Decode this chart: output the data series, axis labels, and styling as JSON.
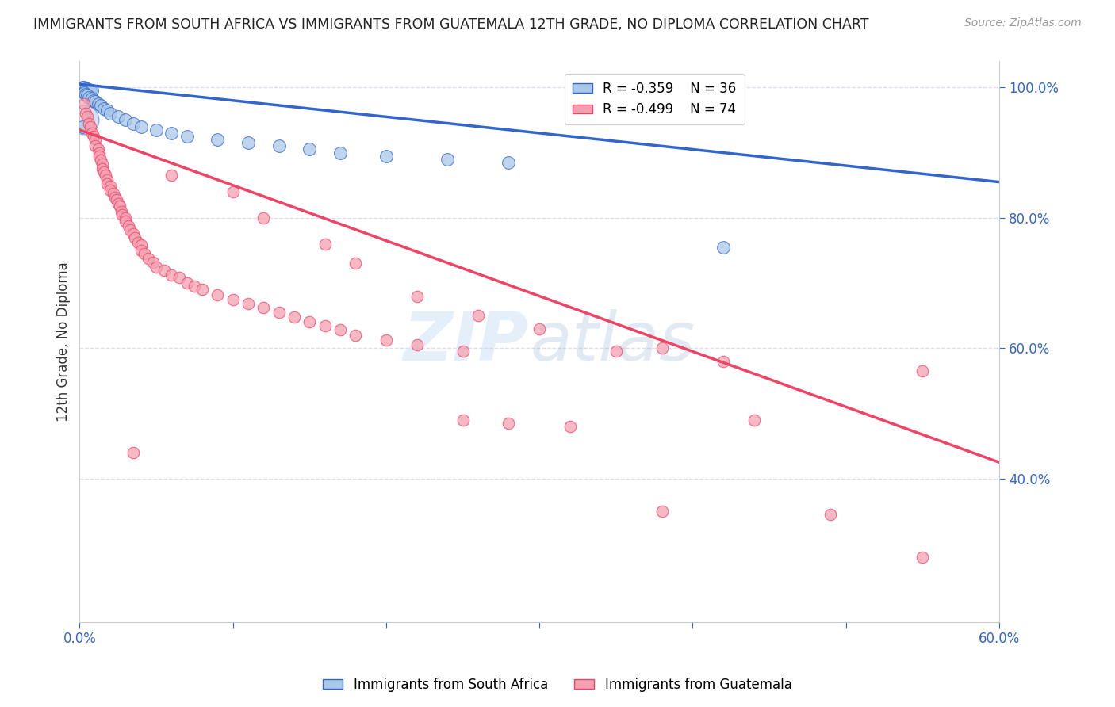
{
  "title": "IMMIGRANTS FROM SOUTH AFRICA VS IMMIGRANTS FROM GUATEMALA 12TH GRADE, NO DIPLOMA CORRELATION CHART",
  "source": "Source: ZipAtlas.com",
  "ylabel": "12th Grade, No Diploma",
  "xmin": 0.0,
  "xmax": 0.6,
  "ymin": 0.18,
  "ymax": 1.04,
  "blue_R": -0.359,
  "blue_N": 36,
  "pink_R": -0.499,
  "pink_N": 74,
  "blue_label": "Immigrants from South Africa",
  "pink_label": "Immigrants from Guatemala",
  "blue_color": "#A8C8E8",
  "pink_color": "#F4A0B0",
  "blue_line_color": "#3366CC",
  "pink_line_color": "#EE4466",
  "blue_line_y0": 1.005,
  "blue_line_y1": 0.855,
  "pink_line_y0": 0.935,
  "pink_line_y1": 0.425,
  "blue_scatter": [
    [
      0.002,
      1.0
    ],
    [
      0.003,
      1.0
    ],
    [
      0.004,
      0.998
    ],
    [
      0.005,
      0.998
    ],
    [
      0.006,
      0.997
    ],
    [
      0.007,
      0.996
    ],
    [
      0.008,
      0.995
    ],
    [
      0.003,
      0.992
    ],
    [
      0.004,
      0.99
    ],
    [
      0.005,
      0.988
    ],
    [
      0.006,
      0.985
    ],
    [
      0.008,
      0.983
    ],
    [
      0.009,
      0.98
    ],
    [
      0.01,
      0.978
    ],
    [
      0.012,
      0.975
    ],
    [
      0.014,
      0.972
    ],
    [
      0.016,
      0.968
    ],
    [
      0.018,
      0.965
    ],
    [
      0.02,
      0.96
    ],
    [
      0.025,
      0.955
    ],
    [
      0.03,
      0.95
    ],
    [
      0.035,
      0.945
    ],
    [
      0.04,
      0.94
    ],
    [
      0.05,
      0.935
    ],
    [
      0.06,
      0.93
    ],
    [
      0.07,
      0.925
    ],
    [
      0.09,
      0.92
    ],
    [
      0.11,
      0.915
    ],
    [
      0.13,
      0.91
    ],
    [
      0.15,
      0.905
    ],
    [
      0.17,
      0.9
    ],
    [
      0.2,
      0.895
    ],
    [
      0.24,
      0.89
    ],
    [
      0.28,
      0.885
    ],
    [
      0.42,
      0.755
    ],
    [
      0.002,
      0.94
    ]
  ],
  "pink_scatter": [
    [
      0.003,
      0.975
    ],
    [
      0.004,
      0.96
    ],
    [
      0.005,
      0.955
    ],
    [
      0.006,
      0.945
    ],
    [
      0.007,
      0.94
    ],
    [
      0.008,
      0.93
    ],
    [
      0.009,
      0.925
    ],
    [
      0.01,
      0.92
    ],
    [
      0.01,
      0.91
    ],
    [
      0.012,
      0.905
    ],
    [
      0.013,
      0.9
    ],
    [
      0.013,
      0.895
    ],
    [
      0.014,
      0.888
    ],
    [
      0.015,
      0.882
    ],
    [
      0.015,
      0.875
    ],
    [
      0.016,
      0.87
    ],
    [
      0.017,
      0.865
    ],
    [
      0.018,
      0.858
    ],
    [
      0.018,
      0.852
    ],
    [
      0.02,
      0.848
    ],
    [
      0.02,
      0.842
    ],
    [
      0.022,
      0.838
    ],
    [
      0.023,
      0.832
    ],
    [
      0.024,
      0.828
    ],
    [
      0.025,
      0.822
    ],
    [
      0.026,
      0.818
    ],
    [
      0.027,
      0.81
    ],
    [
      0.028,
      0.805
    ],
    [
      0.03,
      0.8
    ],
    [
      0.03,
      0.795
    ],
    [
      0.032,
      0.788
    ],
    [
      0.033,
      0.782
    ],
    [
      0.035,
      0.775
    ],
    [
      0.036,
      0.77
    ],
    [
      0.038,
      0.762
    ],
    [
      0.04,
      0.758
    ],
    [
      0.04,
      0.75
    ],
    [
      0.042,
      0.745
    ],
    [
      0.045,
      0.738
    ],
    [
      0.048,
      0.732
    ],
    [
      0.05,
      0.725
    ],
    [
      0.055,
      0.72
    ],
    [
      0.06,
      0.712
    ],
    [
      0.065,
      0.708
    ],
    [
      0.07,
      0.7
    ],
    [
      0.075,
      0.695
    ],
    [
      0.08,
      0.69
    ],
    [
      0.09,
      0.682
    ],
    [
      0.1,
      0.675
    ],
    [
      0.11,
      0.668
    ],
    [
      0.12,
      0.662
    ],
    [
      0.13,
      0.655
    ],
    [
      0.14,
      0.648
    ],
    [
      0.15,
      0.64
    ],
    [
      0.16,
      0.635
    ],
    [
      0.17,
      0.628
    ],
    [
      0.18,
      0.62
    ],
    [
      0.2,
      0.612
    ],
    [
      0.22,
      0.605
    ],
    [
      0.25,
      0.595
    ],
    [
      0.06,
      0.865
    ],
    [
      0.1,
      0.84
    ],
    [
      0.12,
      0.8
    ],
    [
      0.16,
      0.76
    ],
    [
      0.18,
      0.73
    ],
    [
      0.22,
      0.68
    ],
    [
      0.26,
      0.65
    ],
    [
      0.3,
      0.63
    ],
    [
      0.35,
      0.595
    ],
    [
      0.38,
      0.6
    ],
    [
      0.42,
      0.58
    ],
    [
      0.55,
      0.565
    ],
    [
      0.28,
      0.485
    ],
    [
      0.32,
      0.48
    ]
  ],
  "pink_outliers": [
    [
      0.035,
      0.44
    ],
    [
      0.25,
      0.49
    ],
    [
      0.38,
      0.35
    ],
    [
      0.44,
      0.49
    ],
    [
      0.49,
      0.345
    ],
    [
      0.55,
      0.28
    ]
  ],
  "xticks": [
    0.0,
    0.1,
    0.2,
    0.3,
    0.4,
    0.5,
    0.6
  ],
  "yticks_right": [
    0.4,
    0.6,
    0.8,
    1.0
  ],
  "watermark_zip": "ZIP",
  "watermark_atlas": "atlas",
  "background_color": "#FFFFFF",
  "grid_color": "#DDDDEE"
}
